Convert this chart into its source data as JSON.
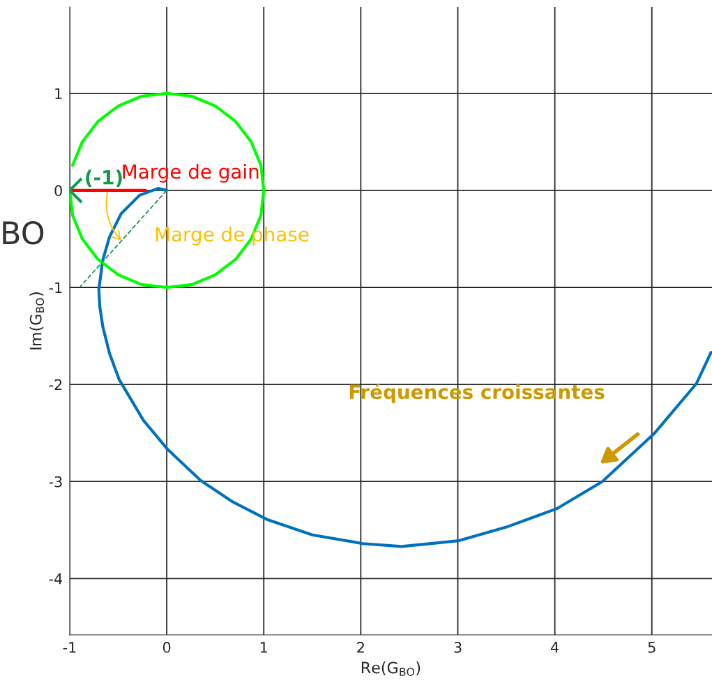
{
  "chart_data": {
    "type": "line",
    "xlabel": "Re(G$_{BO}$)",
    "ylabel": "Im(G$_{BO}$)",
    "xlim": [
      -1,
      5.62
    ],
    "ylim": [
      -4.58,
      1.89
    ],
    "xticks": [
      -1,
      0,
      1,
      2,
      3,
      4,
      5
    ],
    "yticks": [
      -4,
      -3,
      -2,
      -1,
      0,
      1
    ],
    "grid": true,
    "legend": false,
    "series": [
      {
        "color": "#0072bd",
        "x": [
          0,
          -0.09,
          -0.28,
          -0.47,
          -0.59,
          -0.66,
          -0.7,
          -0.69,
          -0.66,
          -0.59,
          -0.49,
          -0.24,
          0.01,
          0.35,
          0.68,
          1.03,
          1.5,
          2.02,
          2.42,
          3.01,
          3.5,
          4.02,
          4.49,
          5.03,
          5.46,
          5.61
        ],
        "values": [
          0,
          0.02,
          -0.05,
          -0.24,
          -0.48,
          -0.72,
          -1.02,
          -1.2,
          -1.4,
          -1.68,
          -1.95,
          -2.37,
          -2.67,
          -2.99,
          -3.21,
          -3.39,
          -3.55,
          -3.64,
          -3.67,
          -3.61,
          -3.47,
          -3.28,
          -3.0,
          -2.5,
          -1.99,
          -1.67
        ]
      },
      {
        "color": "#00ff00",
        "x": [
          -1,
          -0.97,
          -0.87,
          -0.71,
          -0.5,
          -0.26,
          0,
          0.26,
          0.5,
          0.71,
          0.87,
          0.97,
          1,
          0.97,
          0.87,
          0.71,
          0.5,
          0.26,
          0,
          -0.26,
          -0.5,
          -0.71,
          -0.87,
          -0.97
        ],
        "values": [
          0,
          -0.26,
          -0.5,
          -0.71,
          -0.87,
          -0.97,
          -1,
          -0.97,
          -0.87,
          -0.71,
          -0.5,
          -0.26,
          0,
          0.26,
          0.5,
          0.71,
          0.87,
          0.97,
          1,
          0.97,
          0.87,
          0.71,
          0.5,
          0.26
        ]
      },
      {
        "color": "#ff0000",
        "x": [
          -1,
          -0.22
        ],
        "values": [
          0,
          0
        ]
      },
      {
        "color": "#119a50",
        "line_style": "dashed",
        "x": [
          0,
          -0.89
        ],
        "values": [
          0,
          -0.99
        ]
      },
      {
        "type": "scatter",
        "color": "#119a50",
        "marker": "cross",
        "x": [
          -1
        ],
        "values": [
          0
        ]
      }
    ],
    "annotations": [
      {
        "text": "(-1)",
        "x": -1,
        "y": 0
      },
      {
        "text": "Marge de gain",
        "x": -0.47,
        "y": 0
      },
      "Marge de phase",
      "Fréquences croissantes",
      "BO"
    ]
  }
}
